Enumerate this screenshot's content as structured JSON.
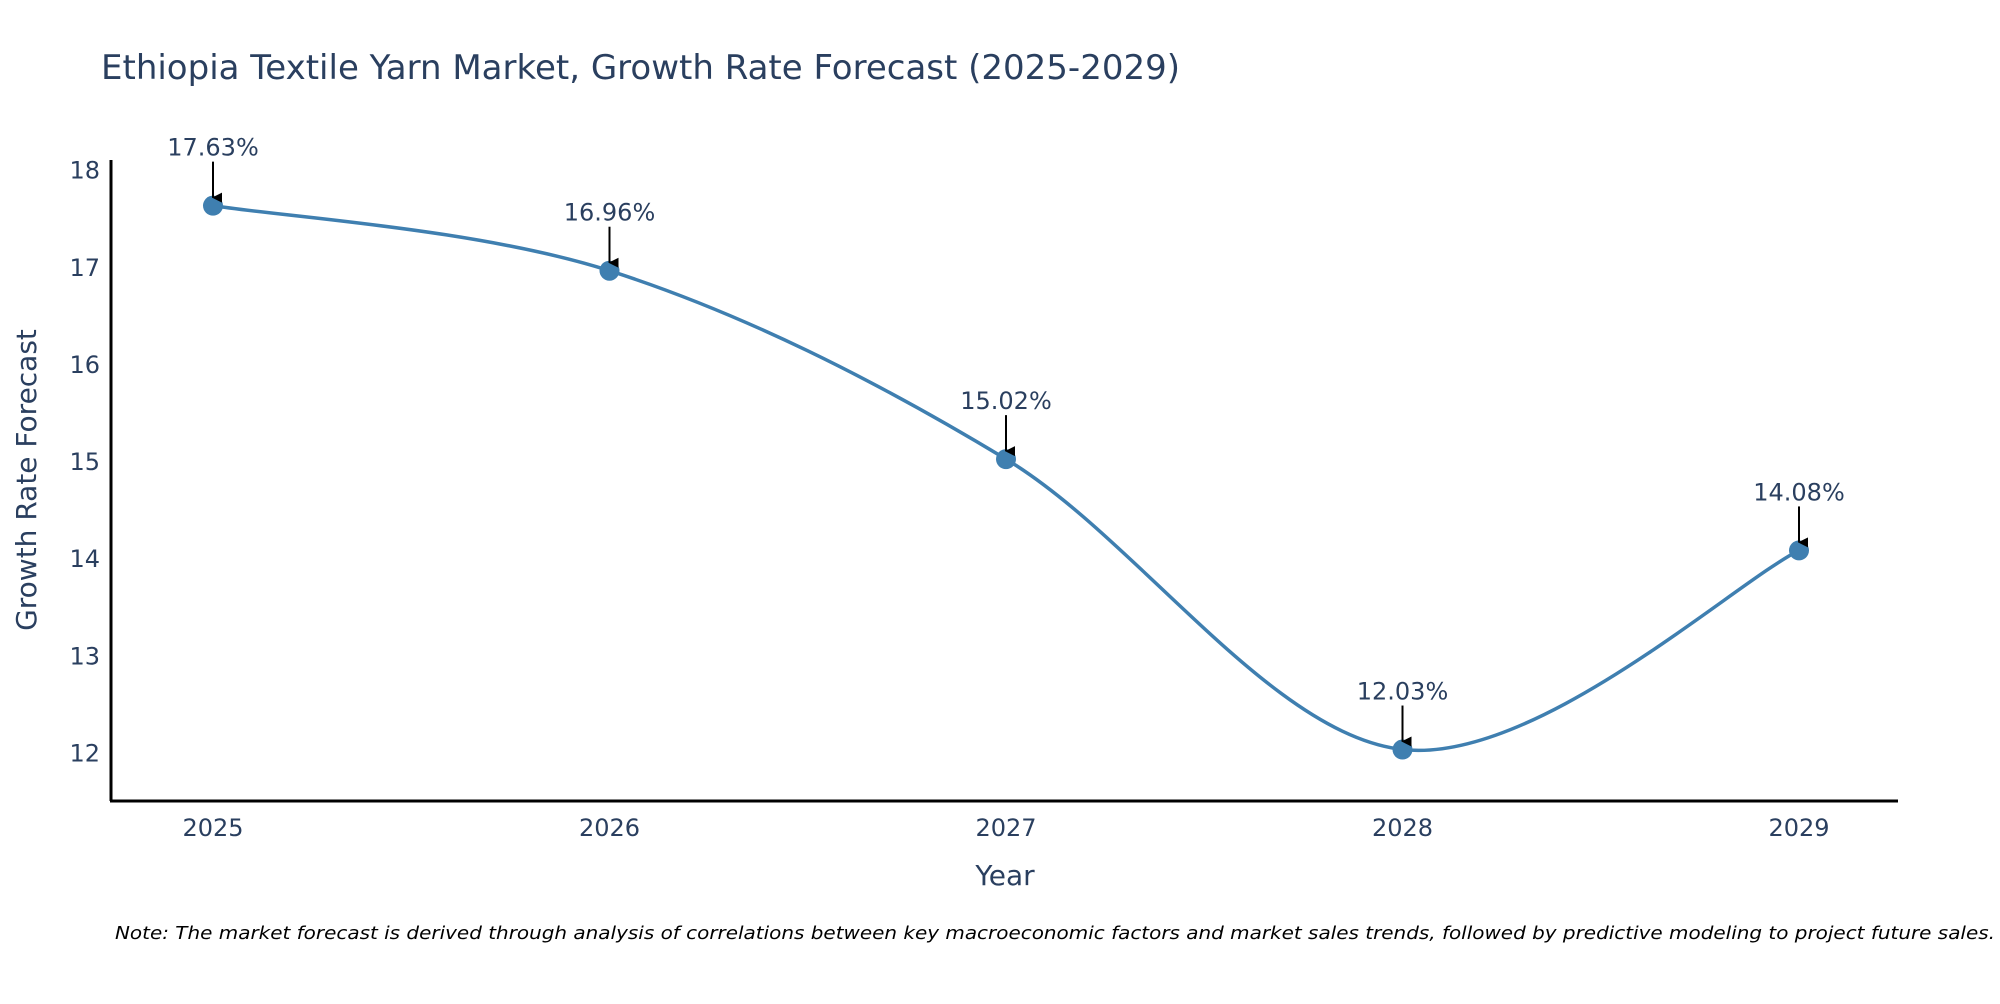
{
  "chart_data": {
    "type": "line",
    "title": "Ethiopia Textile Yarn Market, Growth Rate Forecast (2025-2029)",
    "xlabel": "Year",
    "ylabel": "Growth Rate Forecast",
    "categories": [
      "2025",
      "2026",
      "2027",
      "2028",
      "2029"
    ],
    "series": [
      {
        "name": "Growth Rate Forecast",
        "values": [
          17.63,
          16.96,
          15.02,
          12.03,
          14.08
        ],
        "labels": [
          "17.63%",
          "16.96%",
          "15.02%",
          "12.03%",
          "14.08%"
        ]
      }
    ],
    "ylim": [
      11.5,
      18.1
    ],
    "yticks": [
      12,
      13,
      14,
      15,
      16,
      17,
      18
    ],
    "ytick_labels": [
      "12",
      "13",
      "14",
      "15",
      "16",
      "17",
      "18"
    ],
    "grid": false,
    "legend": "none",
    "line_shape": "spline",
    "colors": {
      "line": "#3f7fb0",
      "marker": "#3f7fb0",
      "text": "#2a3f5f",
      "axis": "#000000",
      "arrow": "#000000"
    },
    "note": "Note: The market forecast is derived through analysis of correlations between key macroeconomic factors and market sales trends, followed by predictive modeling to project future sales."
  }
}
